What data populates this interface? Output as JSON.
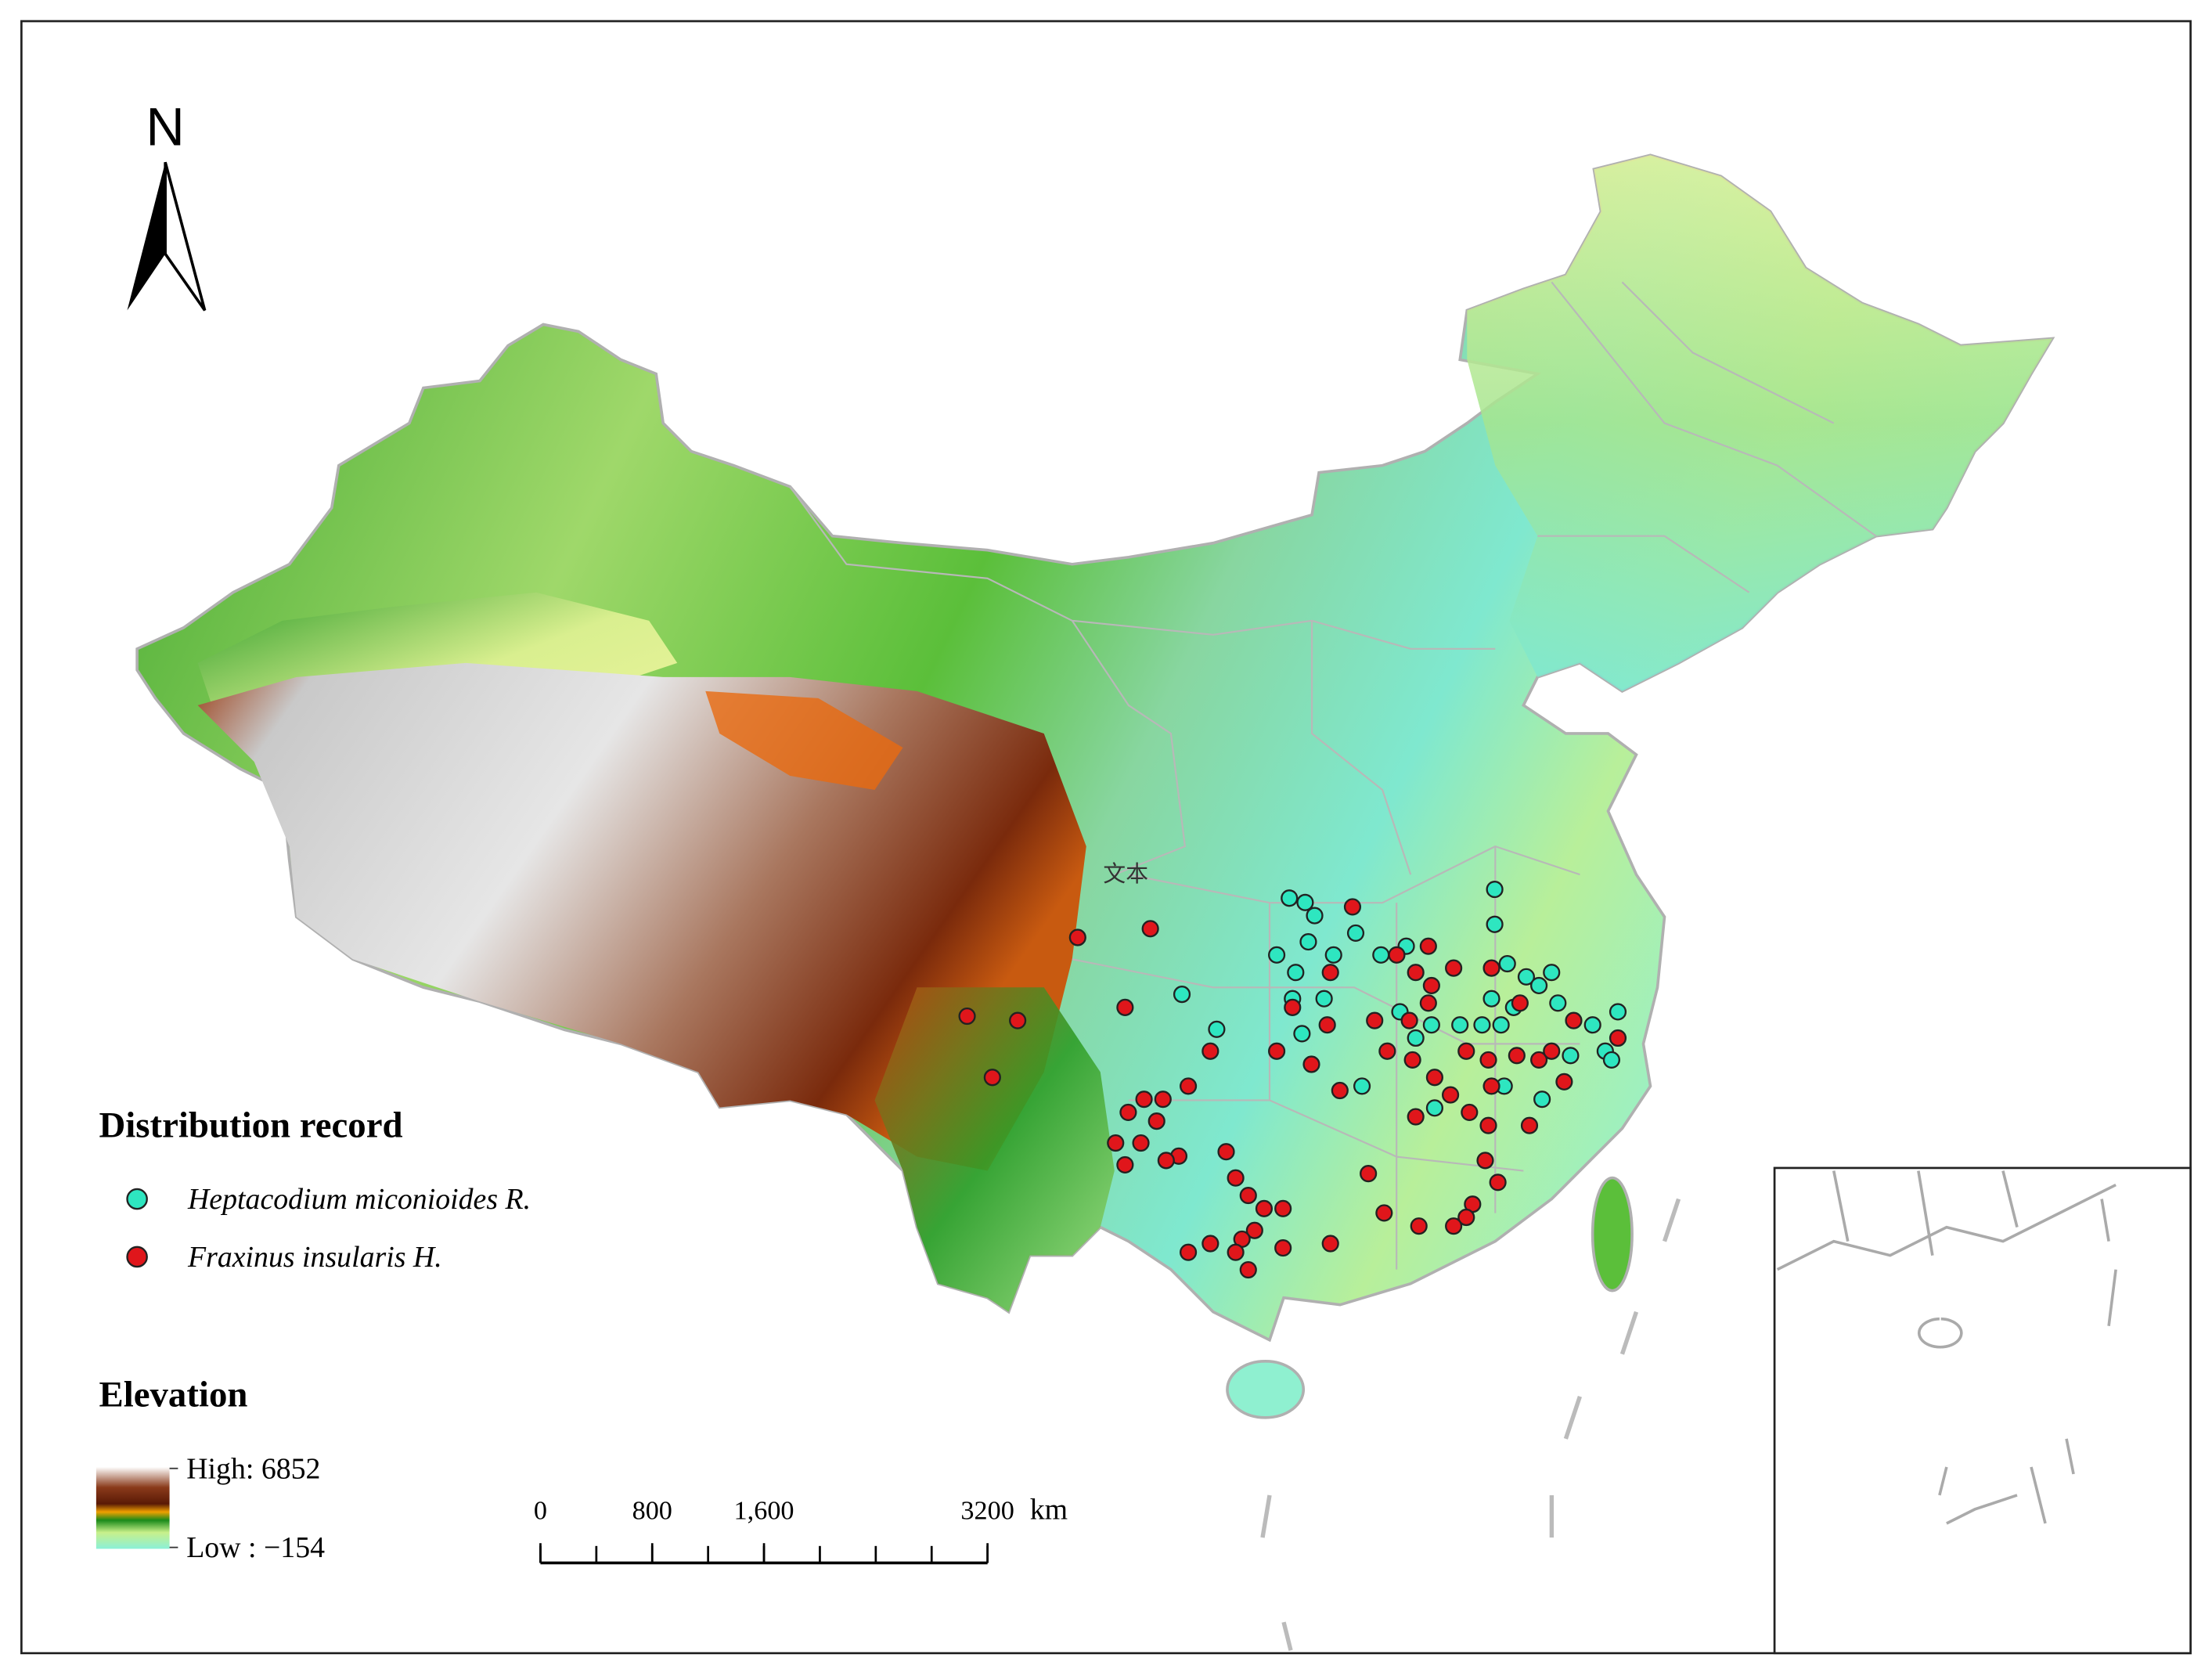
{
  "map": {
    "north": "N",
    "annotation": "文本",
    "legend_title": "Distribution record",
    "series": [
      {
        "name": "Heptacodium miconioides R.",
        "color": "#2ee6c0",
        "points": [
          [
            111.0,
            33.8
          ],
          [
            111.5,
            33.7
          ],
          [
            117.5,
            34.0
          ],
          [
            111.8,
            33.4
          ],
          [
            113.1,
            33.0
          ],
          [
            111.6,
            32.8
          ],
          [
            112.4,
            32.5
          ],
          [
            110.6,
            32.5
          ],
          [
            111.2,
            32.1
          ],
          [
            117.5,
            33.2
          ],
          [
            113.9,
            32.5
          ],
          [
            114.7,
            32.7
          ],
          [
            117.9,
            32.3
          ],
          [
            118.5,
            32.0
          ],
          [
            119.3,
            32.1
          ],
          [
            118.9,
            31.8
          ],
          [
            119.5,
            31.4
          ],
          [
            107.6,
            31.6
          ],
          [
            111.1,
            31.5
          ],
          [
            112.1,
            31.5
          ],
          [
            117.4,
            31.5
          ],
          [
            118.1,
            31.3
          ],
          [
            114.5,
            31.2
          ],
          [
            115.5,
            30.9
          ],
          [
            116.4,
            30.9
          ],
          [
            117.1,
            30.9
          ],
          [
            117.7,
            30.9
          ],
          [
            115.0,
            30.6
          ],
          [
            120.6,
            30.9
          ],
          [
            121.4,
            31.2
          ],
          [
            119.9,
            30.2
          ],
          [
            121.0,
            30.3
          ],
          [
            121.2,
            30.1
          ],
          [
            108.7,
            30.8
          ],
          [
            111.4,
            30.7
          ],
          [
            113.3,
            29.5
          ],
          [
            117.8,
            29.5
          ],
          [
            115.6,
            29.0
          ],
          [
            119.0,
            29.2
          ]
        ]
      },
      {
        "name": "Fraxinus insularis H.",
        "color": "#e0161b",
        "points": [
          [
            113.0,
            33.6
          ],
          [
            115.4,
            32.7
          ],
          [
            114.4,
            32.5
          ],
          [
            116.2,
            32.2
          ],
          [
            117.4,
            32.2
          ],
          [
            106.6,
            33.1
          ],
          [
            104.3,
            32.9
          ],
          [
            112.3,
            32.1
          ],
          [
            111.1,
            31.3
          ],
          [
            115.0,
            32.1
          ],
          [
            115.5,
            31.8
          ],
          [
            115.4,
            31.4
          ],
          [
            114.8,
            31.0
          ],
          [
            113.7,
            31.0
          ],
          [
            112.2,
            30.9
          ],
          [
            118.3,
            31.4
          ],
          [
            120.0,
            31.0
          ],
          [
            121.4,
            30.6
          ],
          [
            105.8,
            31.3
          ],
          [
            100.8,
            31.1
          ],
          [
            102.4,
            31.0
          ],
          [
            108.5,
            30.3
          ],
          [
            110.6,
            30.3
          ],
          [
            114.1,
            30.3
          ],
          [
            114.9,
            30.1
          ],
          [
            116.6,
            30.3
          ],
          [
            117.3,
            30.1
          ],
          [
            118.2,
            30.2
          ],
          [
            118.9,
            30.1
          ],
          [
            119.3,
            30.3
          ],
          [
            111.7,
            30.0
          ],
          [
            112.6,
            29.4
          ],
          [
            115.6,
            29.7
          ],
          [
            116.1,
            29.3
          ],
          [
            117.4,
            29.5
          ],
          [
            115.0,
            28.8
          ],
          [
            116.7,
            28.9
          ],
          [
            117.3,
            28.6
          ],
          [
            118.6,
            28.6
          ],
          [
            119.7,
            29.6
          ],
          [
            101.6,
            29.7
          ],
          [
            106.4,
            29.2
          ],
          [
            107.0,
            29.2
          ],
          [
            107.8,
            29.5
          ],
          [
            105.9,
            28.9
          ],
          [
            106.8,
            28.7
          ],
          [
            106.3,
            28.2
          ],
          [
            105.5,
            28.2
          ],
          [
            107.5,
            27.9
          ],
          [
            107.1,
            27.8
          ],
          [
            105.8,
            27.7
          ],
          [
            109.0,
            28.0
          ],
          [
            109.3,
            27.4
          ],
          [
            109.7,
            27.0
          ],
          [
            117.2,
            27.8
          ],
          [
            113.5,
            27.5
          ],
          [
            117.6,
            27.3
          ],
          [
            116.8,
            26.8
          ],
          [
            116.6,
            26.5
          ],
          [
            114.0,
            26.6
          ],
          [
            110.2,
            26.7
          ],
          [
            110.8,
            26.7
          ],
          [
            109.9,
            26.2
          ],
          [
            109.5,
            26.0
          ],
          [
            109.3,
            25.7
          ],
          [
            107.8,
            25.7
          ],
          [
            108.5,
            25.9
          ],
          [
            110.8,
            25.8
          ],
          [
            112.3,
            25.9
          ],
          [
            115.1,
            26.3
          ],
          [
            116.2,
            26.3
          ],
          [
            109.7,
            25.3
          ]
        ]
      }
    ],
    "elevation": {
      "title": "Elevation",
      "high": {
        "value": 6852,
        "label": "High: 6852"
      },
      "low": {
        "value": -154,
        "label": "Low : −154"
      }
    },
    "scale_bar": {
      "unit": "km",
      "ticks": [
        0,
        800,
        {
          "value": 1600,
          "label": "1,600"
        },
        3200
      ]
    }
  }
}
